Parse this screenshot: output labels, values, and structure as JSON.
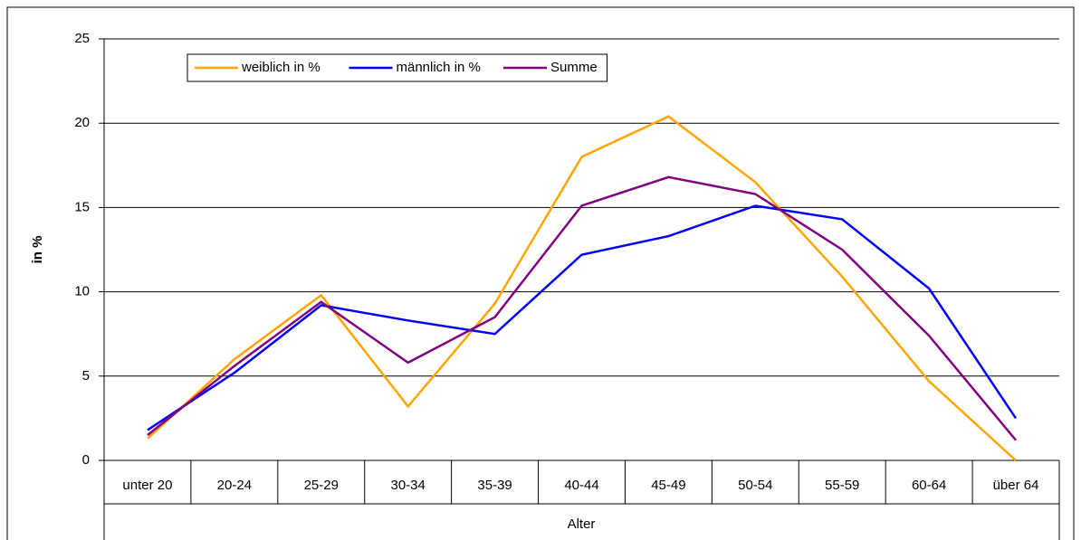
{
  "chart_data": {
    "type": "line",
    "y_label": "in %",
    "x_label": "Alter",
    "categories": [
      "unter 20",
      "20-24",
      "25-29",
      "30-34",
      "35-39",
      "40-44",
      "45-49",
      "50-54",
      "55-59",
      "60-64",
      "über 64"
    ],
    "series": [
      {
        "name": "weiblich in %",
        "color": "#ffa500",
        "values": [
          1.3,
          6.0,
          9.8,
          3.2,
          9.3,
          18.0,
          20.4,
          16.5,
          10.9,
          4.7,
          0
        ]
      },
      {
        "name": "männlich in %",
        "color": "#0000ff",
        "values": [
          1.8,
          5.2,
          9.2,
          8.3,
          7.5,
          12.2,
          13.3,
          15.1,
          14.3,
          10.2,
          2.5
        ]
      },
      {
        "name": "Summe",
        "color": "#800080",
        "values": [
          1.5,
          5.6,
          9.4,
          5.8,
          8.5,
          15.1,
          16.8,
          15.8,
          12.5,
          7.4,
          1.2
        ]
      }
    ],
    "ylim": [
      0,
      25
    ],
    "yticks": [
      0,
      5,
      10,
      15,
      20,
      25
    ],
    "grid": true,
    "legend": "upper left"
  }
}
